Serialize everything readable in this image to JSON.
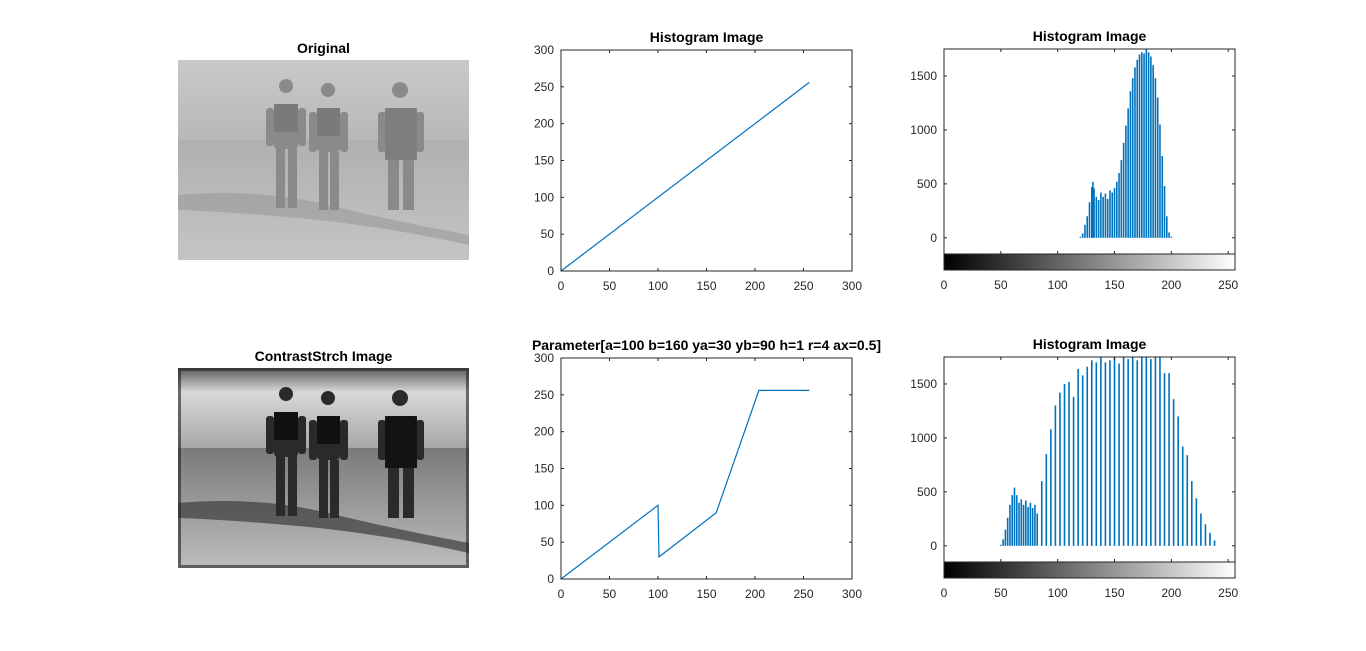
{
  "images": {
    "original_title": "Original",
    "contrast_title": "ContrastStrch Image"
  },
  "colors": {
    "line": "#0072BD",
    "axis": "#262626",
    "bar": "#0072BD"
  },
  "chart_data": [
    {
      "type": "line",
      "title": "Histogram Image",
      "xlim": [
        0,
        300
      ],
      "ylim": [
        0,
        300
      ],
      "xticks": [
        0,
        50,
        100,
        150,
        200,
        250,
        300
      ],
      "yticks": [
        0,
        50,
        100,
        150,
        200,
        250,
        300
      ],
      "series": [
        {
          "x": [
            0,
            256
          ],
          "y": [
            0,
            256
          ]
        }
      ]
    },
    {
      "type": "bar",
      "title": "Histogram Image",
      "xlim": [
        0,
        256
      ],
      "ylim": [
        -150,
        1750
      ],
      "xticks": [
        0,
        50,
        100,
        150,
        200,
        250
      ],
      "yticks": [
        0,
        500,
        1000,
        1500
      ],
      "colorbar": true,
      "bins": [
        [
          120,
          10
        ],
        [
          122,
          40
        ],
        [
          124,
          120
        ],
        [
          126,
          200
        ],
        [
          128,
          330
        ],
        [
          130,
          470
        ],
        [
          131,
          520
        ],
        [
          132,
          460
        ],
        [
          134,
          380
        ],
        [
          136,
          350
        ],
        [
          138,
          420
        ],
        [
          140,
          380
        ],
        [
          142,
          410
        ],
        [
          144,
          360
        ],
        [
          146,
          440
        ],
        [
          148,
          420
        ],
        [
          150,
          460
        ],
        [
          152,
          520
        ],
        [
          154,
          600
        ],
        [
          156,
          720
        ],
        [
          158,
          880
        ],
        [
          160,
          1040
        ],
        [
          162,
          1200
        ],
        [
          164,
          1360
        ],
        [
          166,
          1480
        ],
        [
          168,
          1580
        ],
        [
          170,
          1650
        ],
        [
          172,
          1700
        ],
        [
          174,
          1720
        ],
        [
          176,
          1710
        ],
        [
          178,
          1750
        ],
        [
          180,
          1720
        ],
        [
          182,
          1680
        ],
        [
          184,
          1600
        ],
        [
          186,
          1480
        ],
        [
          188,
          1300
        ],
        [
          190,
          1050
        ],
        [
          192,
          760
        ],
        [
          194,
          480
        ],
        [
          196,
          200
        ],
        [
          198,
          50
        ],
        [
          200,
          10
        ]
      ]
    },
    {
      "type": "line",
      "title": "Parameter[a=100 b=160 ya=30 yb=90 h=1 r=4 ax=0.5]",
      "xlim": [
        0,
        300
      ],
      "ylim": [
        0,
        300
      ],
      "xticks": [
        0,
        50,
        100,
        150,
        200,
        250,
        300
      ],
      "yticks": [
        0,
        50,
        100,
        150,
        200,
        250,
        300
      ],
      "series": [
        {
          "x": [
            0,
            100,
            101,
            160,
            204,
            256
          ],
          "y": [
            0,
            100,
            30,
            90,
            256,
            256
          ]
        }
      ]
    },
    {
      "type": "bar",
      "title": "Histogram Image",
      "xlim": [
        0,
        256
      ],
      "ylim": [
        -150,
        1750
      ],
      "xticks": [
        0,
        50,
        100,
        150,
        200,
        250
      ],
      "yticks": [
        0,
        500,
        1000,
        1500
      ],
      "colorbar": true,
      "bins": [
        [
          50,
          10
        ],
        [
          52,
          60
        ],
        [
          54,
          150
        ],
        [
          56,
          260
        ],
        [
          58,
          380
        ],
        [
          60,
          470
        ],
        [
          62,
          540
        ],
        [
          64,
          470
        ],
        [
          66,
          400
        ],
        [
          68,
          430
        ],
        [
          70,
          380
        ],
        [
          72,
          420
        ],
        [
          74,
          360
        ],
        [
          76,
          400
        ],
        [
          78,
          350
        ],
        [
          80,
          380
        ],
        [
          82,
          300
        ],
        [
          86,
          600
        ],
        [
          90,
          850
        ],
        [
          94,
          1080
        ],
        [
          98,
          1300
        ],
        [
          102,
          1420
        ],
        [
          106,
          1500
        ],
        [
          110,
          1520
        ],
        [
          114,
          1380
        ],
        [
          118,
          1640
        ],
        [
          122,
          1580
        ],
        [
          126,
          1660
        ],
        [
          130,
          1720
        ],
        [
          134,
          1700
        ],
        [
          138,
          1750
        ],
        [
          142,
          1700
        ],
        [
          146,
          1720
        ],
        [
          150,
          1750
        ],
        [
          154,
          1690
        ],
        [
          158,
          1750
        ],
        [
          162,
          1730
        ],
        [
          166,
          1750
        ],
        [
          170,
          1720
        ],
        [
          174,
          1750
        ],
        [
          178,
          1750
        ],
        [
          182,
          1730
        ],
        [
          186,
          1750
        ],
        [
          190,
          1750
        ],
        [
          194,
          1600
        ],
        [
          198,
          1600
        ],
        [
          202,
          1360
        ],
        [
          206,
          1200
        ],
        [
          210,
          920
        ],
        [
          214,
          840
        ],
        [
          218,
          600
        ],
        [
          222,
          440
        ],
        [
          226,
          300
        ],
        [
          230,
          200
        ],
        [
          234,
          120
        ],
        [
          238,
          50
        ]
      ]
    }
  ]
}
